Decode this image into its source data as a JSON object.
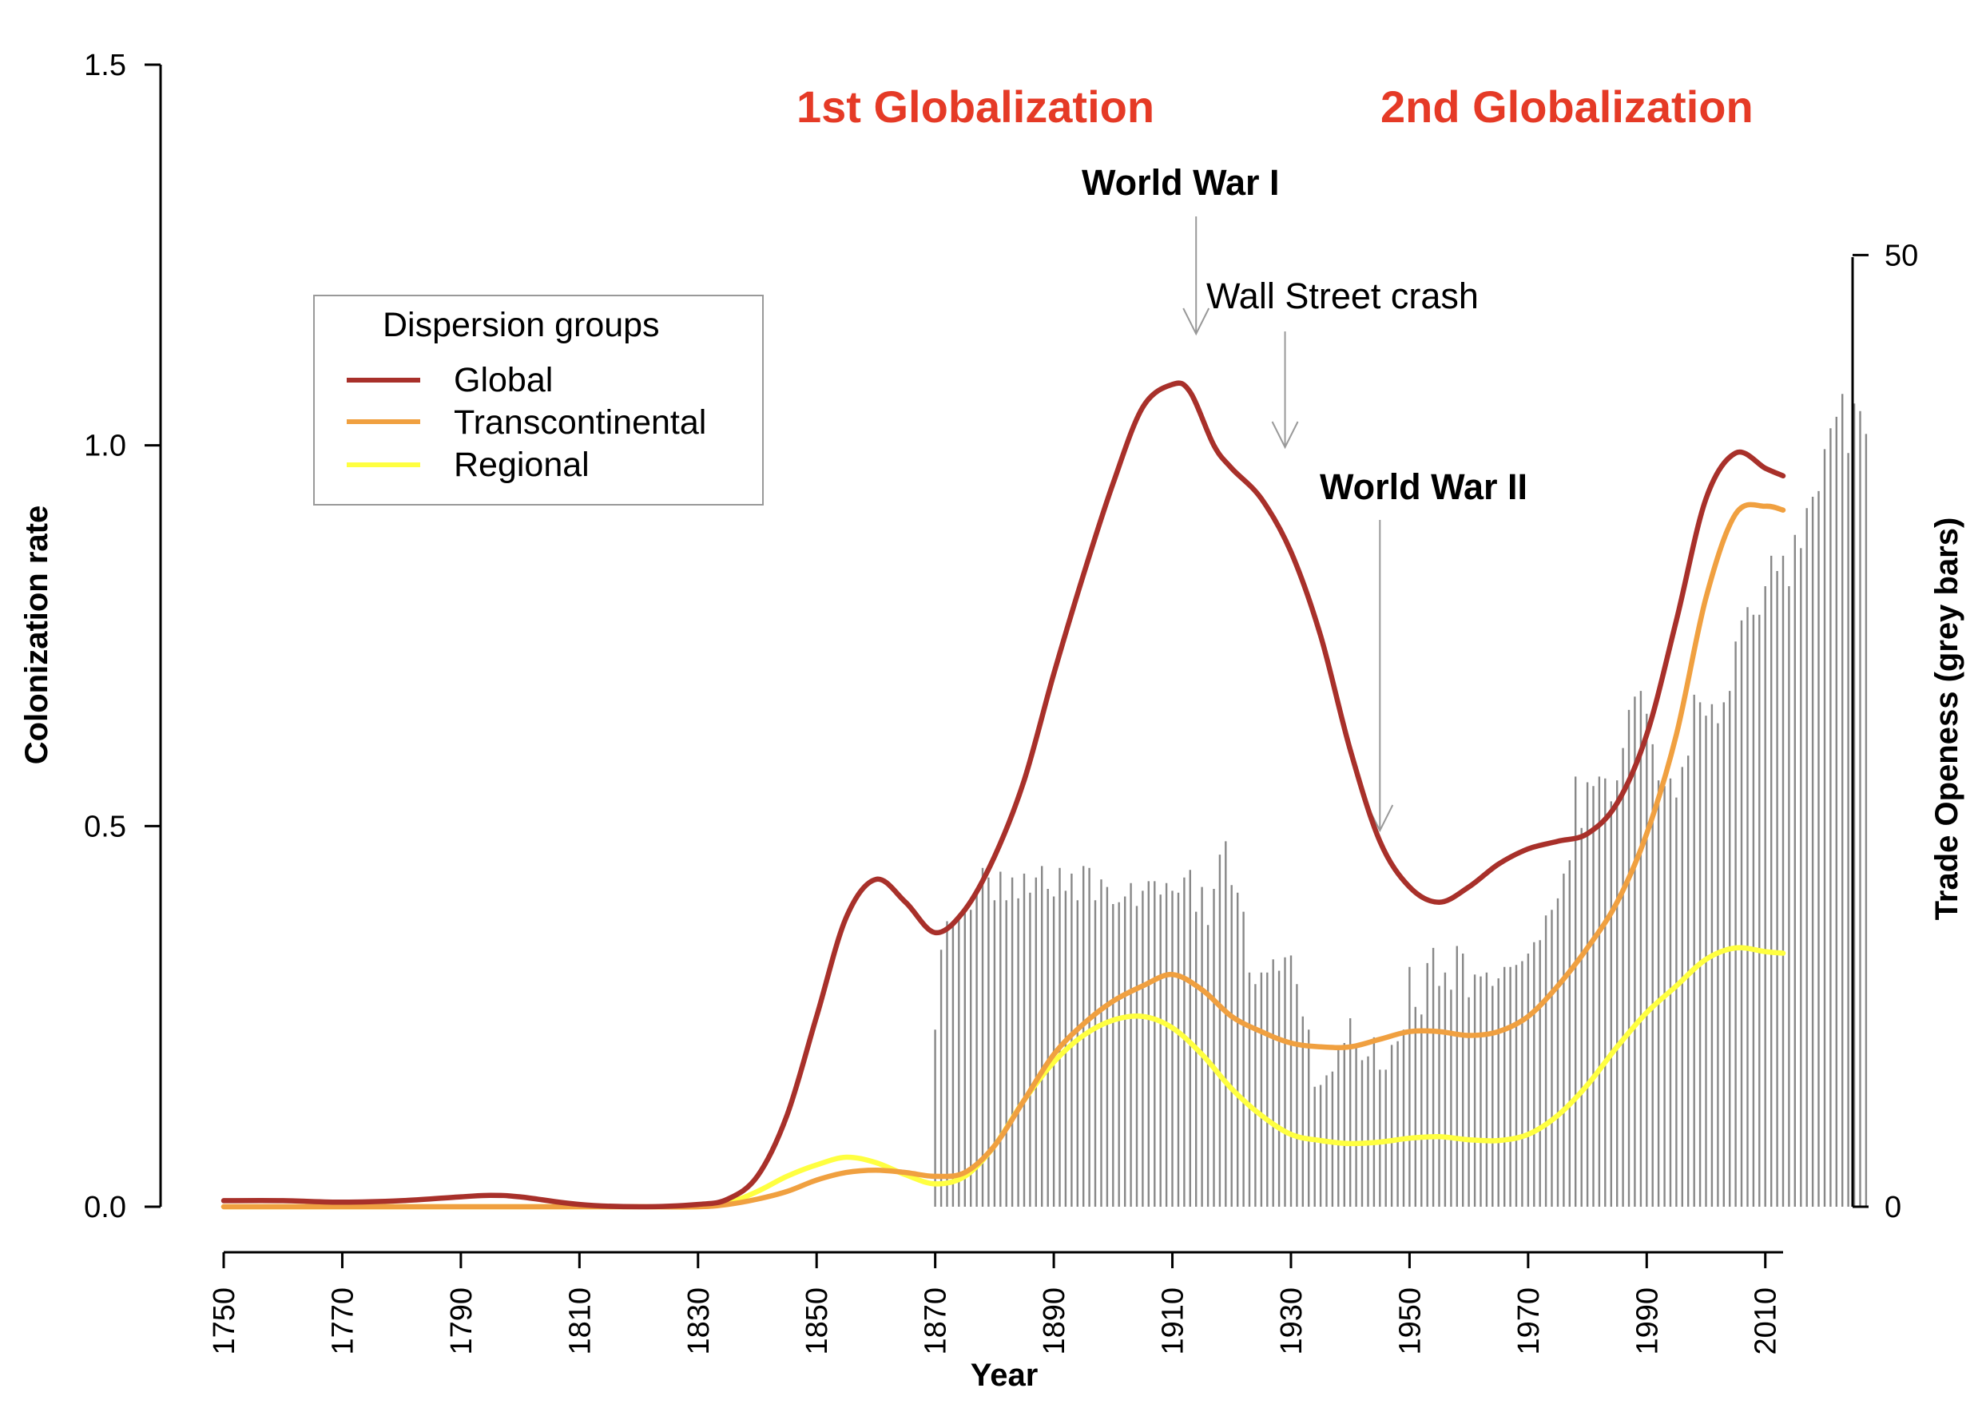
{
  "chart_data": {
    "type": "line",
    "xlabel": "Year",
    "ylabel": "Colonization rate",
    "y2label": "Trade Openess (grey bars)",
    "xlim": [
      1750,
      2013
    ],
    "ylim": [
      0,
      1.5
    ],
    "y2lim": [
      0,
      50
    ],
    "x_ticks": [
      "1750",
      "1770",
      "1790",
      "1810",
      "1830",
      "1850",
      "1870",
      "1890",
      "1910",
      "1930",
      "1950",
      "1970",
      "1990",
      "2010"
    ],
    "y_ticks": [
      "0.0",
      "0.5",
      "1.0",
      "1.5"
    ],
    "y2_ticks": [
      "0",
      "50"
    ],
    "legend": {
      "title": "Dispersion groups",
      "position": "top-left"
    },
    "series": [
      {
        "name": "Global",
        "color": "#a8302a",
        "x": [
          1750,
          1760,
          1770,
          1780,
          1790,
          1795,
          1800,
          1810,
          1820,
          1830,
          1835,
          1840,
          1845,
          1850,
          1855,
          1860,
          1865,
          1870,
          1875,
          1880,
          1885,
          1890,
          1895,
          1900,
          1905,
          1910,
          1913,
          1917,
          1920,
          1925,
          1930,
          1935,
          1940,
          1945,
          1950,
          1955,
          1960,
          1965,
          1970,
          1975,
          1980,
          1985,
          1990,
          1995,
          2000,
          2005,
          2010,
          2013
        ],
        "values": [
          0.008,
          0.008,
          0.006,
          0.008,
          0.013,
          0.015,
          0.013,
          0.003,
          0.0,
          0.003,
          0.01,
          0.04,
          0.12,
          0.25,
          0.38,
          0.43,
          0.4,
          0.36,
          0.39,
          0.46,
          0.56,
          0.7,
          0.83,
          0.95,
          1.05,
          1.08,
          1.07,
          1.0,
          0.97,
          0.93,
          0.86,
          0.75,
          0.6,
          0.48,
          0.42,
          0.4,
          0.42,
          0.45,
          0.47,
          0.48,
          0.49,
          0.53,
          0.62,
          0.77,
          0.93,
          0.99,
          0.97,
          0.96
        ]
      },
      {
        "name": "Transcontinental",
        "color": "#f0a040",
        "x": [
          1750,
          1760,
          1770,
          1780,
          1790,
          1800,
          1810,
          1820,
          1830,
          1835,
          1840,
          1845,
          1850,
          1855,
          1860,
          1865,
          1870,
          1875,
          1880,
          1885,
          1890,
          1895,
          1900,
          1905,
          1910,
          1915,
          1920,
          1925,
          1930,
          1935,
          1940,
          1945,
          1950,
          1955,
          1960,
          1965,
          1970,
          1975,
          1980,
          1985,
          1990,
          1995,
          2000,
          2005,
          2010,
          2013
        ],
        "values": [
          0.0,
          0.0,
          0.0,
          0.0,
          0.0,
          0.0,
          0.0,
          0.0,
          0.0,
          0.003,
          0.01,
          0.02,
          0.035,
          0.045,
          0.048,
          0.045,
          0.04,
          0.045,
          0.08,
          0.14,
          0.2,
          0.24,
          0.27,
          0.29,
          0.305,
          0.285,
          0.25,
          0.23,
          0.215,
          0.21,
          0.21,
          0.22,
          0.23,
          0.23,
          0.225,
          0.23,
          0.25,
          0.29,
          0.34,
          0.4,
          0.49,
          0.62,
          0.8,
          0.91,
          0.92,
          0.915
        ]
      },
      {
        "name": "Regional",
        "color": "#ffff40",
        "x": [
          1750,
          1760,
          1770,
          1780,
          1790,
          1800,
          1810,
          1820,
          1830,
          1835,
          1840,
          1845,
          1850,
          1855,
          1860,
          1865,
          1870,
          1875,
          1880,
          1885,
          1890,
          1895,
          1900,
          1905,
          1910,
          1915,
          1920,
          1925,
          1930,
          1935,
          1940,
          1945,
          1950,
          1955,
          1960,
          1965,
          1970,
          1975,
          1980,
          1985,
          1990,
          1995,
          2000,
          2005,
          2010,
          2013
        ],
        "values": [
          0.0,
          0.0,
          0.0,
          0.0,
          0.0,
          0.0,
          0.0,
          0.0,
          0.0,
          0.005,
          0.02,
          0.04,
          0.055,
          0.065,
          0.058,
          0.042,
          0.03,
          0.04,
          0.08,
          0.14,
          0.19,
          0.225,
          0.245,
          0.25,
          0.235,
          0.2,
          0.155,
          0.12,
          0.095,
          0.087,
          0.083,
          0.085,
          0.09,
          0.092,
          0.088,
          0.087,
          0.095,
          0.12,
          0.16,
          0.21,
          0.255,
          0.29,
          0.325,
          0.34,
          0.335,
          0.333
        ]
      },
      {
        "name": "",
        "type": "bar",
        "axis": "right",
        "color": "#888888",
        "x_start": 1870,
        "x_step": 1,
        "values": [
          9.3,
          13.5,
          15,
          14.9,
          15.1,
          15.5,
          15.6,
          16.4,
          17.8,
          17.3,
          16.1,
          17.6,
          16.1,
          17.3,
          16.2,
          17.5,
          16.5,
          17.3,
          17.9,
          16.7,
          16.3,
          17.8,
          16.6,
          17.5,
          16.1,
          17.9,
          17.8,
          16.1,
          17.2,
          16.8,
          15.9,
          16,
          16.3,
          17,
          15.8,
          16.6,
          17.1,
          17.1,
          16.4,
          17,
          16.6,
          16.5,
          17.3,
          17.7,
          15.5,
          16.8,
          14.8,
          16.7,
          18.5,
          19.2,
          16.9,
          16.5,
          15.5,
          12.3,
          11.7,
          12.3,
          12.3,
          13,
          12.4,
          13.1,
          13.2,
          11.7,
          10,
          9.3,
          6.3,
          6.4,
          6.9,
          7.1,
          8.4,
          8.6,
          9.9,
          8.5,
          7.7,
          7.9,
          8.9,
          7.2,
          7.2,
          8.5,
          8.7,
          9.3,
          12.6,
          10.5,
          10.1,
          12.8,
          13.6,
          11.6,
          12.3,
          11.4,
          13.7,
          13.3,
          11,
          12.2,
          12.1,
          12.3,
          11.6,
          12,
          12.6,
          12.6,
          12.7,
          12.9,
          13.3,
          13.9,
          14,
          15.3,
          15.6,
          16.2,
          17.5,
          18.2,
          22.6,
          19.9,
          22.3,
          22.1,
          22.6,
          22.5,
          21.3,
          22.4,
          24.1,
          26.1,
          26.8,
          27.1,
          25.9,
          24.3,
          22.4,
          22.1,
          22.5,
          21.5,
          23.1,
          23.7,
          26.9,
          26.5,
          25.8,
          26.4,
          25.4,
          26.5,
          27.1,
          29.7,
          30.8,
          31.5,
          31.1,
          31.1,
          32.6,
          34.2,
          33.4,
          34.2,
          32.6,
          35.3,
          34.6,
          36.7,
          37.3,
          37.6,
          39.8,
          40.9,
          41.5,
          42.7,
          39.6,
          42.2,
          41.8,
          40.6
        ]
      }
    ],
    "annotations": [
      {
        "text": "1st Globalization",
        "kind": "era"
      },
      {
        "text": "2nd Globalization",
        "kind": "era"
      },
      {
        "text": "World War I",
        "kind": "event",
        "x": 1914
      },
      {
        "text": "Wall Street crash",
        "kind": "event",
        "x": 1929
      },
      {
        "text": "World War II",
        "kind": "event",
        "x": 1945
      }
    ]
  }
}
